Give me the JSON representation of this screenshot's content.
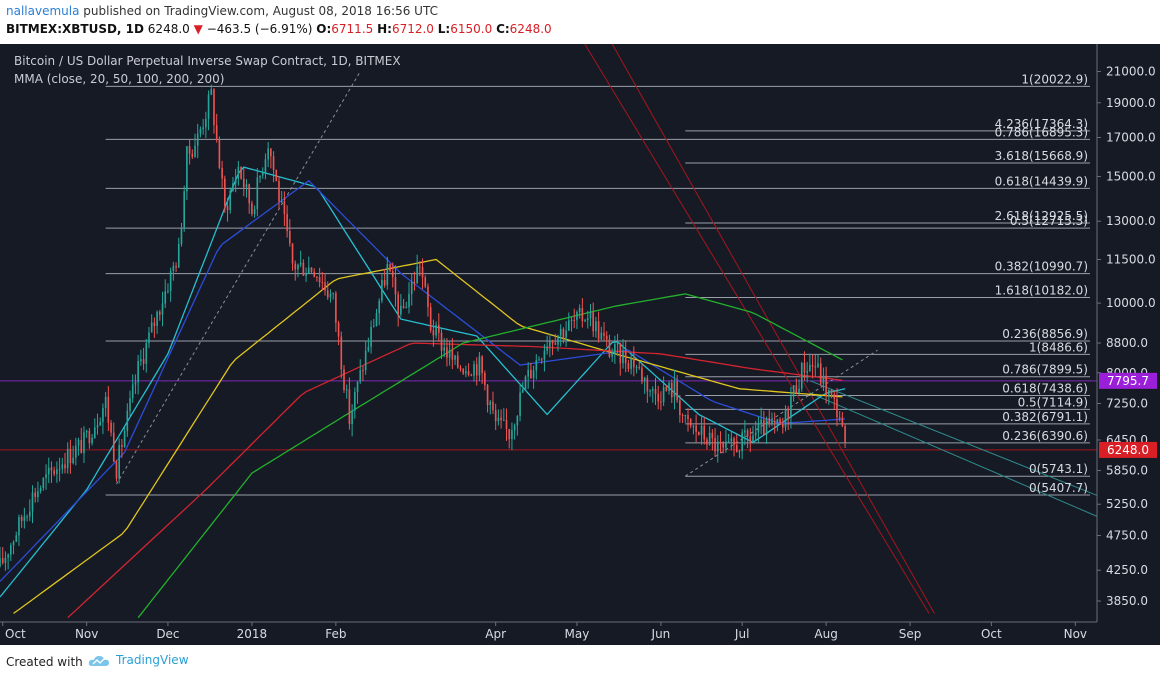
{
  "header": {
    "author": "nallavemula",
    "published_text": "published on TradingView.com, August 08, 2018 16:56 UTC",
    "symbol": "BITMEX:XBTUSD, 1D",
    "last": "6248.0",
    "change": "−463.5 (−6.91%)",
    "o_label": "O:",
    "o_value": "6711.5",
    "h_label": "H:",
    "h_value": "6712.0",
    "l_label": "L:",
    "l_value": "6150.0",
    "c_label": "C:",
    "c_value": "6248.0"
  },
  "legend": {
    "title": "Bitcoin / US Dollar Perpetual Inverse Swap Contract, 1D, BITMEX",
    "indicator": "MMA (close, 20, 50, 100, 200, 200)"
  },
  "footer": {
    "created_with": "Created with",
    "brand": "TradingView"
  },
  "colors": {
    "background": "#161a25",
    "up": "#26a69a",
    "down": "#ef5350",
    "ma20": "#26bfd0",
    "ma50": "#2b4dd8",
    "ma100": "#e0c51f",
    "ma200a": "#d3242f",
    "ma200b": "#22b02c",
    "fib": "#9a9ea8",
    "last_price_badge": "#d81f26",
    "marker_badge": "#9b1fd8"
  },
  "chart_data": {
    "type": "candlestick",
    "x_ticks": [
      "Oct",
      "Nov",
      "Dec",
      "2018",
      "Feb",
      "Apr",
      "May",
      "Jun",
      "Jul",
      "Aug",
      "Sep",
      "Oct",
      "Nov"
    ],
    "y_ticks": [
      "21000.0",
      "19000.0",
      "17000.0",
      "15000.0",
      "13000.0",
      "11500.0",
      "10000.0",
      "8800.0",
      "8000.0",
      "7250.0",
      "6450.0",
      "5850.0",
      "5250.0",
      "4750.0",
      "4250.0",
      "3850.0"
    ],
    "y_scale": "log",
    "ylim": [
      3600,
      22500
    ],
    "price_tags": {
      "last": "6248.0",
      "marker": "7795.7"
    },
    "fib_levels_left": [
      {
        "label": "1(20022.9)",
        "price": 20022.9
      },
      {
        "label": "0.786(16895.3)",
        "price": 16895.3
      },
      {
        "label": "0.618(14439.9)",
        "price": 14439.9
      },
      {
        "label": "0.5(12715.3)",
        "price": 12715.3
      },
      {
        "label": "0.382(10990.7)",
        "price": 10990.7
      },
      {
        "label": "0.236(8856.9)",
        "price": 8856.9
      },
      {
        "label": "0(5407.7)",
        "price": 5407.7
      }
    ],
    "fib_levels_right": [
      {
        "label": "4.236(17364.3)",
        "price": 17364.3
      },
      {
        "label": "3.618(15668.9)",
        "price": 15668.9
      },
      {
        "label": "2.618(12925.5)",
        "price": 12925.5
      },
      {
        "label": "1.618(10182.0)",
        "price": 10182.0
      },
      {
        "label": "1(8486.6)",
        "price": 8486.6
      },
      {
        "label": "0.786(7899.5)",
        "price": 7899.5
      },
      {
        "label": "0.618(7438.6)",
        "price": 7438.6
      },
      {
        "label": "0.5(7114.9)",
        "price": 7114.9
      },
      {
        "label": "0.382(6791.1)",
        "price": 6791.1
      },
      {
        "label": "0.236(6390.6)",
        "price": 6390.6
      },
      {
        "label": "0(5743.1)",
        "price": 5743.1
      }
    ],
    "price_path": [
      [
        "2017-09-30",
        4300
      ],
      [
        "2017-10-12",
        5400
      ],
      [
        "2017-10-22",
        6000
      ],
      [
        "2017-10-31",
        6400
      ],
      [
        "2017-11-08",
        7300
      ],
      [
        "2017-11-12",
        5900
      ],
      [
        "2017-11-20",
        8100
      ],
      [
        "2017-11-28",
        9900
      ],
      [
        "2017-12-05",
        11800
      ],
      [
        "2017-12-08",
        16000
      ],
      [
        "2017-12-12",
        17000
      ],
      [
        "2017-12-17",
        19500
      ],
      [
        "2017-12-22",
        13500
      ],
      [
        "2017-12-27",
        15500
      ],
      [
        "2018-01-01",
        13500
      ],
      [
        "2018-01-07",
        16800
      ],
      [
        "2018-01-16",
        11300
      ],
      [
        "2018-01-24",
        11200
      ],
      [
        "2018-01-31",
        10100
      ],
      [
        "2018-02-06",
        6900
      ],
      [
        "2018-02-12",
        8500
      ],
      [
        "2018-02-20",
        11200
      ],
      [
        "2018-02-25",
        9600
      ],
      [
        "2018-03-04",
        11400
      ],
      [
        "2018-03-08",
        9300
      ],
      [
        "2018-03-17",
        8200
      ],
      [
        "2018-03-26",
        8200
      ],
      [
        "2018-04-01",
        6800
      ],
      [
        "2018-04-06",
        6600
      ],
      [
        "2018-04-12",
        7800
      ],
      [
        "2018-04-20",
        8900
      ],
      [
        "2018-04-28",
        9300
      ],
      [
        "2018-05-05",
        9700
      ],
      [
        "2018-05-13",
        8600
      ],
      [
        "2018-05-22",
        8300
      ],
      [
        "2018-05-29",
        7500
      ],
      [
        "2018-06-06",
        7600
      ],
      [
        "2018-06-10",
        6800
      ],
      [
        "2018-06-18",
        6500
      ],
      [
        "2018-06-24",
        6200
      ],
      [
        "2018-07-01",
        6400
      ],
      [
        "2018-07-09",
        6700
      ],
      [
        "2018-07-16",
        6700
      ],
      [
        "2018-07-19",
        7400
      ],
      [
        "2018-07-24",
        8200
      ],
      [
        "2018-07-28",
        8200
      ],
      [
        "2018-08-01",
        7600
      ],
      [
        "2018-08-06",
        7000
      ],
      [
        "2018-08-08",
        6248
      ]
    ],
    "series": [
      {
        "period": 20,
        "values": [
          [
            "2017-09-30",
            3900
          ],
          [
            "2017-11-01",
            5500
          ],
          [
            "2017-12-01",
            8500
          ],
          [
            "2017-12-28",
            15500
          ],
          [
            "2018-01-25",
            14500
          ],
          [
            "2018-02-25",
            9500
          ],
          [
            "2018-03-25",
            9000
          ],
          [
            "2018-04-20",
            7000
          ],
          [
            "2018-05-15",
            8900
          ],
          [
            "2018-06-15",
            7000
          ],
          [
            "2018-07-05",
            6400
          ],
          [
            "2018-08-01",
            7500
          ],
          [
            "2018-08-08",
            7600
          ]
        ]
      },
      {
        "period": 50,
        "values": [
          [
            "2017-09-30",
            4100
          ],
          [
            "2017-11-15",
            6200
          ],
          [
            "2017-12-20",
            12000
          ],
          [
            "2018-01-22",
            14800
          ],
          [
            "2018-02-25",
            11000
          ],
          [
            "2018-04-10",
            8200
          ],
          [
            "2018-05-20",
            8600
          ],
          [
            "2018-06-20",
            7300
          ],
          [
            "2018-07-15",
            6800
          ],
          [
            "2018-08-08",
            6900
          ]
        ]
      },
      {
        "period": 100,
        "values": [
          [
            "2017-10-05",
            3700
          ],
          [
            "2017-11-15",
            4800
          ],
          [
            "2017-12-25",
            8300
          ],
          [
            "2018-02-01",
            10800
          ],
          [
            "2018-03-10",
            11500
          ],
          [
            "2018-04-10",
            9300
          ],
          [
            "2018-05-20",
            8400
          ],
          [
            "2018-06-30",
            7600
          ],
          [
            "2018-08-08",
            7400
          ]
        ]
      },
      {
        "period": 200,
        "values": [
          [
            "2017-10-25",
            3650
          ],
          [
            "2017-12-15",
            5500
          ],
          [
            "2018-01-20",
            7500
          ],
          [
            "2018-03-01",
            8800
          ],
          [
            "2018-04-15",
            8700
          ],
          [
            "2018-06-01",
            8500
          ],
          [
            "2018-07-05",
            8100
          ],
          [
            "2018-08-08",
            7800
          ]
        ]
      },
      {
        "period": 200,
        "values": [
          [
            "2017-11-20",
            3650
          ],
          [
            "2018-01-01",
            5800
          ],
          [
            "2018-02-05",
            7000
          ],
          [
            "2018-03-20",
            8800
          ],
          [
            "2018-05-15",
            9900
          ],
          [
            "2018-06-10",
            10300
          ],
          [
            "2018-07-05",
            9700
          ],
          [
            "2018-08-08",
            8300
          ]
        ]
      }
    ]
  }
}
